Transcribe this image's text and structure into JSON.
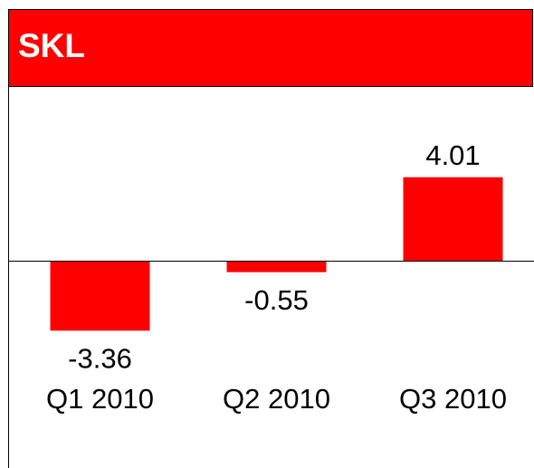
{
  "chart_data": {
    "type": "bar",
    "title": "SKL",
    "categories": [
      "Q1 2010",
      "Q2 2010",
      "Q3 2010"
    ],
    "values": [
      -3.36,
      -0.55,
      4.01
    ],
    "color": "#ff0000"
  }
}
